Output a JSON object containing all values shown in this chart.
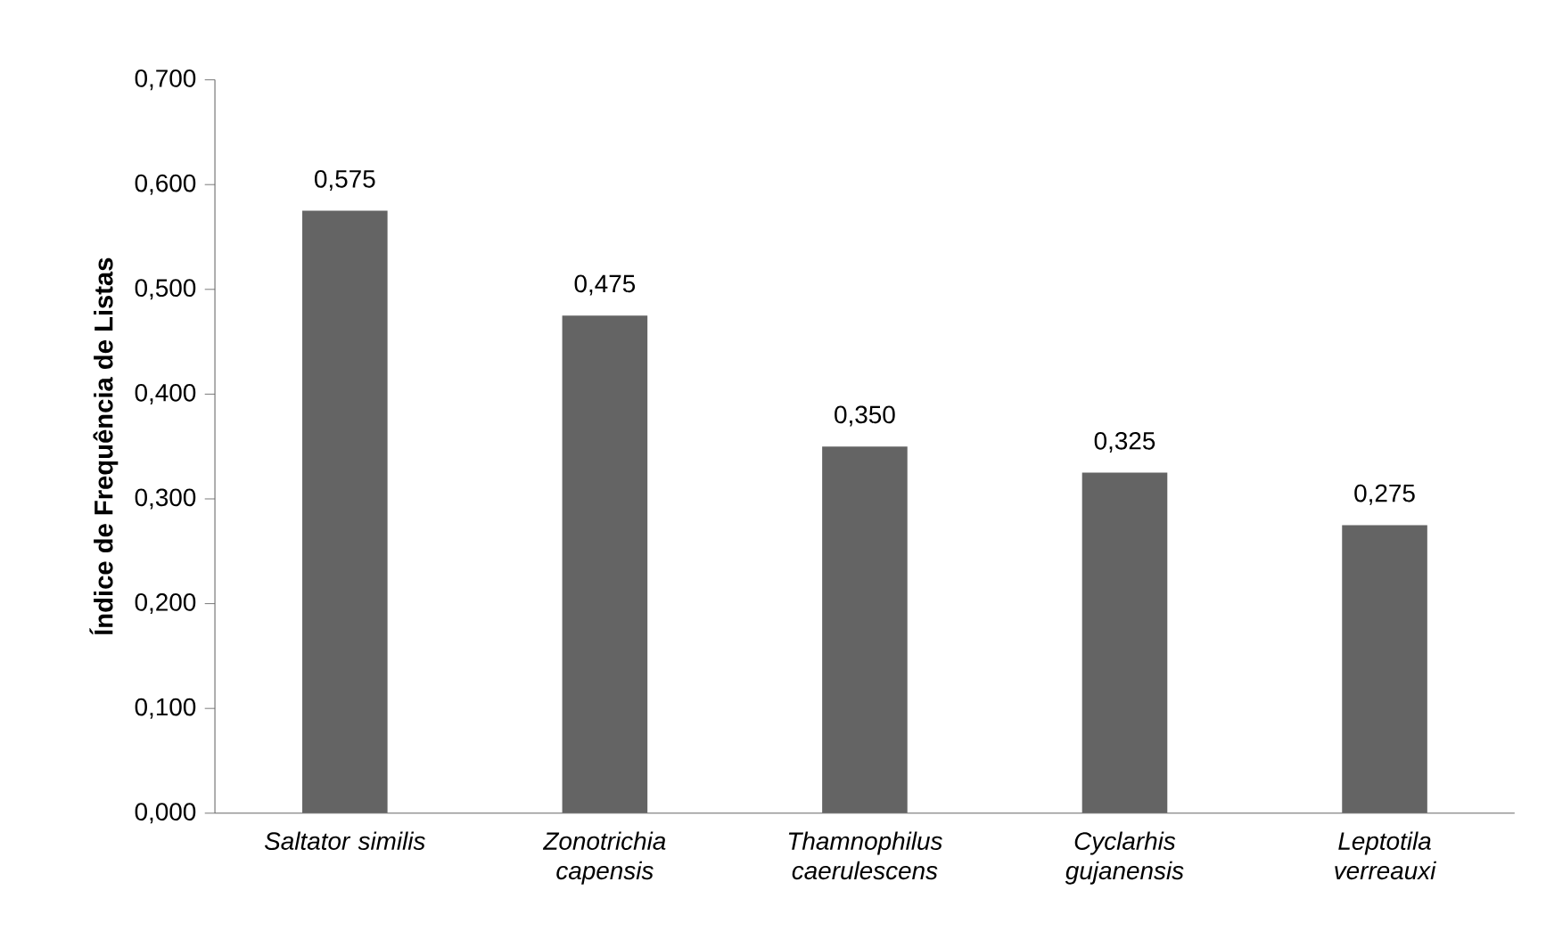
{
  "chart_data": {
    "type": "bar",
    "ylabel": "Índice de Frequência de Listas",
    "categories": [
      "Saltator similis",
      "Zonotrichia capensis",
      "Thamnophilus caerulescens",
      "Cyclarhis gujanensis",
      "Leptotila verreauxi"
    ],
    "values": [
      0.575,
      0.475,
      0.35,
      0.325,
      0.275
    ],
    "value_labels": [
      "0,575",
      "0,475",
      "0,350",
      "0,325",
      "0,275"
    ],
    "color": "#646464",
    "ylim": [
      0,
      0.7
    ],
    "yticks": [
      {
        "value": 0,
        "label": "0,000"
      },
      {
        "value": 0.1,
        "label": "0,100"
      },
      {
        "value": 0.2,
        "label": "0,200"
      },
      {
        "value": 0.3,
        "label": "0,300"
      },
      {
        "value": 0.4,
        "label": "0,400"
      },
      {
        "value": 0.5,
        "label": "0,500"
      },
      {
        "value": 0.6,
        "label": "0,600"
      },
      {
        "value": 0.7,
        "label": "0,700"
      }
    ],
    "grid": false
  }
}
